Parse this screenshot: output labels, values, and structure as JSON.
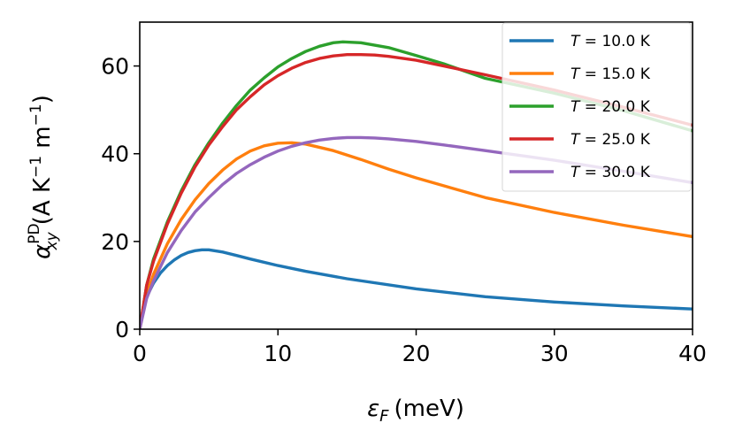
{
  "chart_data": {
    "type": "line",
    "title": "",
    "xlabel": {
      "symbol": "ε",
      "sub": "F",
      "unit": "(meV)"
    },
    "ylabel": {
      "symbol": "α",
      "sub": "xy",
      "sup": "PD",
      "unit_pre": "(A K",
      "exp1": "−1",
      "unit_mid": " m",
      "exp2": "−1",
      "unit_post": ")"
    },
    "xlim": [
      0,
      40
    ],
    "ylim": [
      0,
      70
    ],
    "xticks": [
      "0",
      "10",
      "20",
      "30",
      "40"
    ],
    "yticks": [
      "0",
      "20",
      "40",
      "60"
    ],
    "legend_position": "top-right",
    "series": [
      {
        "name": "T = 10.0 K",
        "label_var": "T",
        "label_value": "10.0 K",
        "color": "#1f77b4",
        "x": [
          0,
          0.3,
          0.6,
          1,
          1.5,
          2,
          2.5,
          3,
          3.5,
          4,
          4.5,
          5,
          6,
          7,
          8,
          10,
          12,
          15,
          20,
          25,
          30,
          35,
          40
        ],
        "y": [
          0,
          5.5,
          8,
          10.5,
          12.8,
          14.5,
          15.8,
          16.8,
          17.5,
          17.9,
          18.1,
          18.1,
          17.6,
          16.8,
          16.0,
          14.5,
          13.2,
          11.5,
          9.2,
          7.4,
          6.2,
          5.3,
          4.6
        ]
      },
      {
        "name": "T = 15.0 K",
        "label_var": "T",
        "label_value": "15.0 K",
        "color": "#ff7f0e",
        "x": [
          0,
          0.5,
          1,
          2,
          3,
          4,
          5,
          6,
          7,
          8,
          9,
          10,
          11,
          12,
          14,
          16,
          18,
          20,
          25,
          30,
          35,
          40
        ],
        "y": [
          0,
          8,
          12.5,
          19.5,
          25,
          29.5,
          33.2,
          36.3,
          38.8,
          40.6,
          41.8,
          42.4,
          42.5,
          42.2,
          40.7,
          38.7,
          36.5,
          34.5,
          30,
          26.6,
          23.7,
          21.1
        ]
      },
      {
        "name": "T = 20.0 K",
        "label_var": "T",
        "label_value": "20.0 K",
        "color": "#2ca02c",
        "x": [
          0,
          0.5,
          1,
          2,
          3,
          4,
          5,
          6,
          7,
          8,
          9,
          10,
          11,
          12,
          13,
          14,
          14.7,
          16,
          18,
          20,
          22,
          25,
          30,
          35,
          40
        ],
        "y": [
          0,
          10,
          16,
          24.5,
          31.5,
          37.5,
          42.5,
          47,
          51,
          54.5,
          57.3,
          59.8,
          61.7,
          63.3,
          64.5,
          65.3,
          65.5,
          65.3,
          64.2,
          62.4,
          60.5,
          57.2,
          53.8,
          49.8,
          45.2
        ]
      },
      {
        "name": "T = 25.0 K",
        "label_var": "T",
        "label_value": "25.0 K",
        "color": "#d62728",
        "x": [
          0,
          0.5,
          1,
          2,
          3,
          4,
          5,
          6,
          7,
          8,
          9,
          10,
          11,
          12,
          13,
          14,
          15,
          16,
          17,
          18,
          20,
          22,
          25,
          30,
          35,
          40
        ],
        "y": [
          0,
          10,
          15.5,
          24,
          31,
          37,
          42,
          46.2,
          50,
          53,
          55.7,
          57.8,
          59.5,
          60.8,
          61.7,
          62.3,
          62.6,
          62.6,
          62.5,
          62.2,
          61.3,
          60,
          58,
          54.5,
          50.6,
          46.5
        ]
      },
      {
        "name": "T = 30.0 K",
        "label_var": "T",
        "label_value": "30.0 K",
        "color": "#9467bd",
        "x": [
          0,
          0.5,
          1,
          2,
          3,
          4,
          5,
          6,
          7,
          8,
          9,
          10,
          11,
          12,
          13,
          14,
          15,
          16,
          17,
          18,
          20,
          22,
          25,
          30,
          35,
          40
        ],
        "y": [
          0,
          7,
          11,
          17.5,
          22.5,
          26.7,
          30,
          33,
          35.5,
          37.5,
          39.2,
          40.6,
          41.7,
          42.5,
          43.1,
          43.5,
          43.7,
          43.7,
          43.6,
          43.4,
          42.8,
          42,
          40.7,
          38.5,
          36,
          33.4
        ]
      }
    ]
  }
}
